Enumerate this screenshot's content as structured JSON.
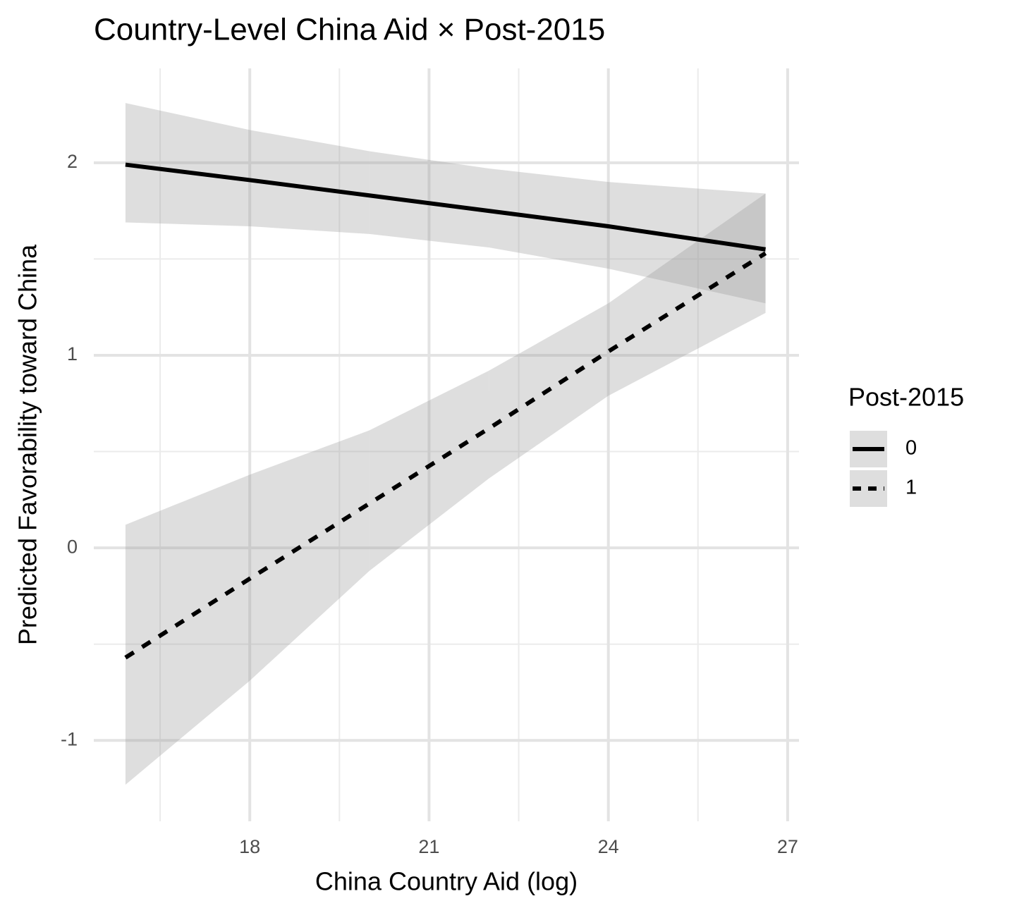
{
  "chart_data": {
    "type": "line",
    "title": "Country-Level China Aid × Post-2015",
    "x_label": "China Country Aid (log)",
    "y_label": "Predicted Favorability toward China",
    "x": [
      15.92,
      18,
      20,
      22,
      24,
      26.63
    ],
    "series": [
      {
        "name": "0",
        "color": "#000000",
        "linetype": "solid",
        "values": [
          1.99,
          1.91,
          1.83,
          1.75,
          1.67,
          1.55
        ],
        "upper": [
          2.31,
          2.17,
          2.06,
          1.97,
          1.9,
          1.84
        ],
        "lower": [
          1.69,
          1.67,
          1.63,
          1.56,
          1.45,
          1.27
        ]
      },
      {
        "name": "1",
        "color": "#000000",
        "linetype": "dashed",
        "values": [
          -0.57,
          -0.16,
          0.23,
          0.62,
          1.02,
          1.53
        ],
        "upper": [
          0.12,
          0.38,
          0.61,
          0.92,
          1.27,
          1.84
        ],
        "lower": [
          -1.23,
          -0.69,
          -0.12,
          0.36,
          0.79,
          1.22
        ]
      }
    ],
    "ribbon_color": "#999999",
    "legend_title": "Post-2015",
    "legend": "right",
    "xlim": [
      15.39,
      27.19
    ],
    "xticks": [
      18,
      21,
      24,
      27
    ],
    "x_minor_ticks": [
      16.5,
      19.5,
      22.5,
      25.5
    ],
    "ylim": [
      -1.42,
      2.49
    ],
    "yticks": [
      -1,
      0,
      1,
      2
    ],
    "y_minor_ticks": [
      -0.5,
      0.5,
      1.5
    ],
    "grid": true
  }
}
